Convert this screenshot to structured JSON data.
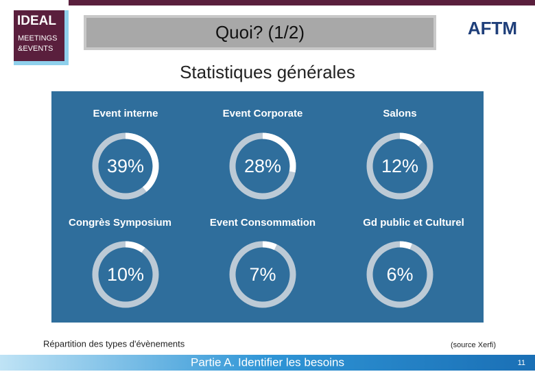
{
  "logo": {
    "line1": "IDEAL",
    "line2": "MEETINGS",
    "line3": "&EVENTS"
  },
  "partner_logo": "AFTM",
  "header": {
    "title": "Quoi? (1/2)",
    "subtitle": "Statistiques générales"
  },
  "chart_data": {
    "type": "gauge",
    "categories": [
      "Event interne",
      "Event Corporate",
      "Salons",
      "Congrès Symposium",
      "Event Consommation",
      "Gd public et Culturel"
    ],
    "values": [
      39,
      28,
      12,
      10,
      7,
      6
    ],
    "value_labels": [
      "39%",
      "28%",
      "12%",
      "10%",
      "7%",
      "6%"
    ],
    "color": "#ffffff",
    "track_color": "#d5dbe0",
    "background": "#2f6e9c"
  },
  "caption": "Répartition des types d'évènements",
  "source": "(source Xerfi)",
  "footer": {
    "text": "Partie A. Identifier les besoins",
    "page": "11"
  }
}
